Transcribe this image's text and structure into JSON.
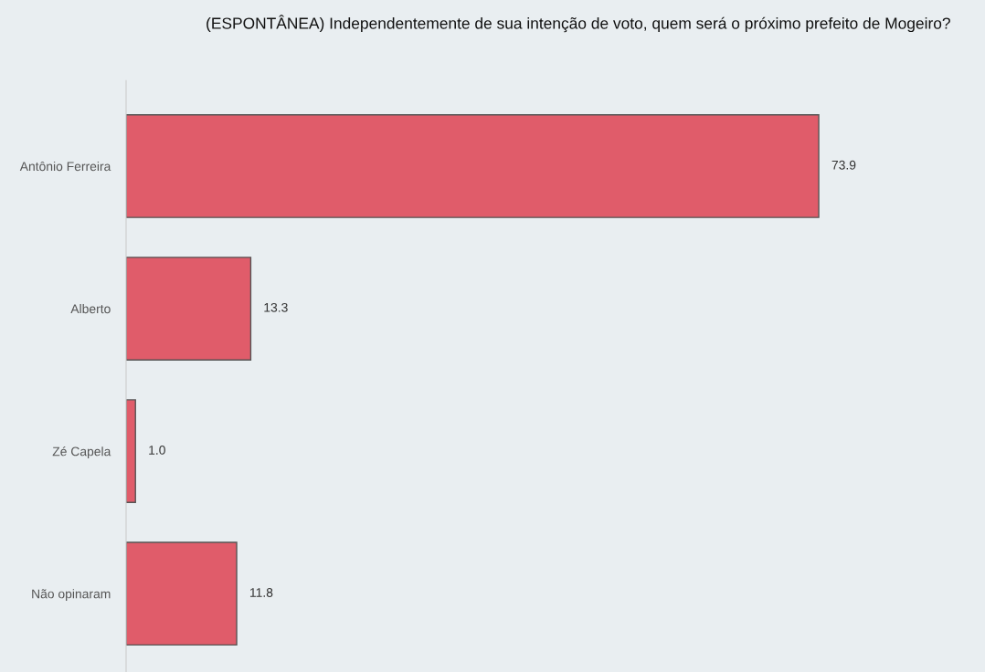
{
  "chart_data": {
    "type": "bar",
    "orientation": "horizontal",
    "title": "(ESPONTÂNEA) Independentemente de sua intenção de voto, quem será o próximo prefeito de Mogeiro?",
    "categories": [
      "Antônio Ferreira",
      "Alberto",
      "Zé Capela",
      "Não opinaram"
    ],
    "values": [
      73.9,
      13.3,
      1.0,
      11.8
    ],
    "color": "#e05c6a",
    "data_labels": true,
    "value_labels": [
      "73.9",
      "13.3",
      "1.0",
      "11.8"
    ],
    "grid": false,
    "legend": false,
    "tick_labels": "y"
  }
}
